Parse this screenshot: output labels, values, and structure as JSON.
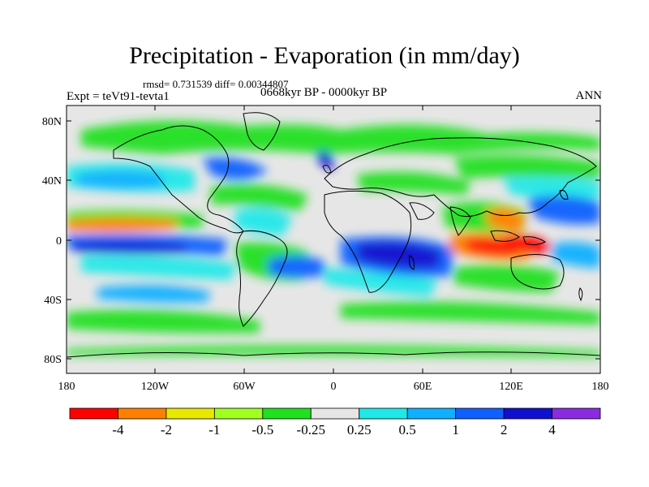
{
  "header": {
    "title": "Precipitation - Evaporation (in mm/day)",
    "stats": "rmsd= 0.731539 diff= 0.00344807",
    "period": "0668kyr BP - 0000kyr BP",
    "experiment": "Expt = teVt91-tevta1",
    "season": "ANN"
  },
  "axes": {
    "lat_labels": [
      "80N",
      "40N",
      "0",
      "40S",
      "80S"
    ],
    "lon_labels": [
      "180",
      "120W",
      "60W",
      "0",
      "60E",
      "120E",
      "180"
    ]
  },
  "colorbar": {
    "labels": [
      "-4",
      "-2",
      "-1",
      "-0.5",
      "-0.25",
      "0.25",
      "0.5",
      "1",
      "2",
      "4"
    ],
    "colors": [
      "#ff0000",
      "#ff8000",
      "#e8e800",
      "#a0ff20",
      "#20e020",
      "#e6e6e6",
      "#20e8e8",
      "#10b0ff",
      "#1060ff",
      "#1010d0",
      "#8a2be2"
    ]
  },
  "colors": {
    "ocean_neutral": "#e6e6e6",
    "coastline": "#000000"
  }
}
